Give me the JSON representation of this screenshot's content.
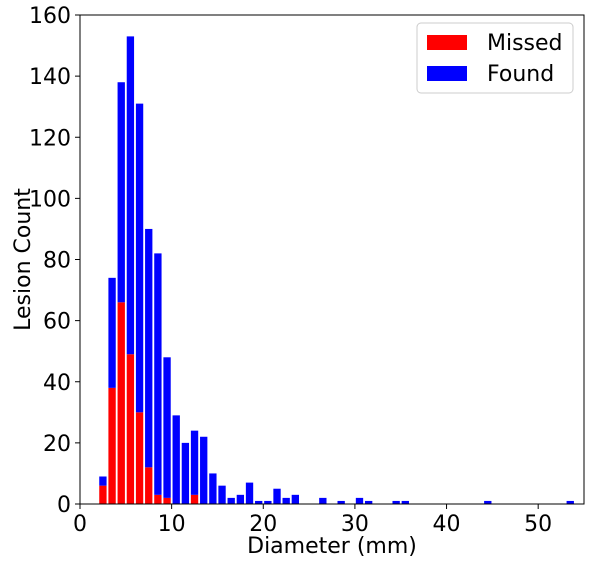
{
  "chart_data": {
    "type": "bar",
    "stacked": true,
    "title": "",
    "xlabel": "Diameter (mm)",
    "ylabel": "Lesion Count",
    "xlim": [
      0,
      55
    ],
    "ylim": [
      0,
      160
    ],
    "xticks": [
      0,
      10,
      20,
      30,
      40,
      50
    ],
    "yticks": [
      0,
      20,
      40,
      60,
      80,
      100,
      120,
      140,
      160
    ],
    "grid": false,
    "legend_position": "top-right",
    "x": [
      2.5,
      3.5,
      4.5,
      5.5,
      6.5,
      7.5,
      8.5,
      9.5,
      10.5,
      11.5,
      12.5,
      13.5,
      14.5,
      15.5,
      16.5,
      17.5,
      18.5,
      19.5,
      20.5,
      21.5,
      22.5,
      23.5,
      26.5,
      28.5,
      30.5,
      31.5,
      34.5,
      35.5,
      44.5,
      53.5
    ],
    "series": [
      {
        "name": "Missed",
        "color": "#ff0000",
        "values": [
          6,
          38,
          66,
          49,
          30,
          12,
          3,
          2,
          0,
          0,
          3,
          0,
          0,
          0,
          0,
          0,
          0,
          0,
          0,
          0,
          0,
          0,
          0,
          0,
          0,
          0,
          0,
          0,
          0,
          0
        ]
      },
      {
        "name": "Found",
        "color": "#0000ff",
        "values": [
          3,
          36,
          72,
          104,
          101,
          78,
          79,
          46,
          29,
          20,
          21,
          22,
          10,
          6,
          2,
          3,
          7,
          1,
          1,
          5,
          2,
          3,
          2,
          1,
          2,
          1,
          1,
          1,
          1,
          1
        ]
      }
    ]
  }
}
